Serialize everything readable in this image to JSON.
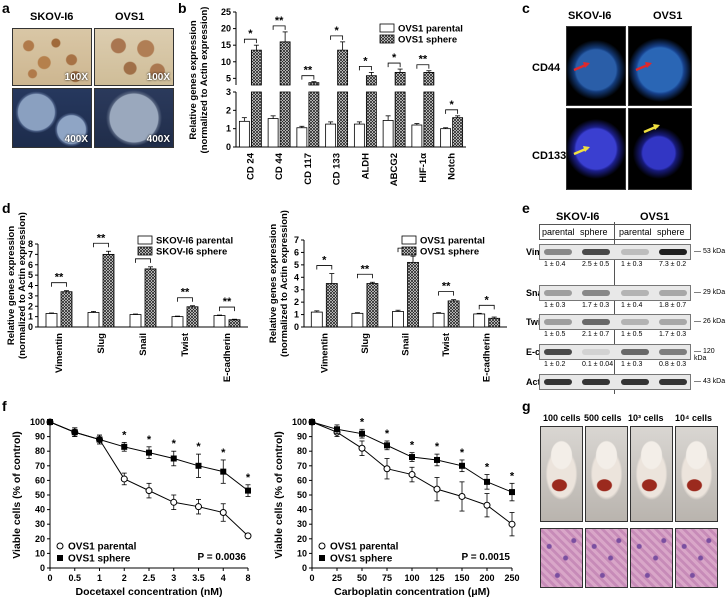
{
  "panel_letters": [
    "a",
    "b",
    "c",
    "d",
    "e",
    "f",
    "g"
  ],
  "panel_a": {
    "col_labels": [
      "SKOV-I6",
      "OVS1"
    ],
    "magnifications": [
      "100X",
      "100X",
      "400X",
      "400X"
    ]
  },
  "panel_c": {
    "col_labels": [
      "SKOV-I6",
      "OVS1"
    ],
    "row_labels": [
      "CD44",
      "CD133"
    ]
  },
  "panel_e": {
    "col_labels": [
      "SKOV-I6",
      "OVS1"
    ],
    "sub_labels": [
      "parental",
      "sphere",
      "parental",
      "sphere"
    ],
    "rows": [
      {
        "protein": "Vimentin",
        "kda": "53 kDa",
        "quant": [
          "1 ± 0.4",
          "2.5 ± 0.5",
          "1 ± 0.3",
          "7.3 ± 0.2"
        ]
      },
      {
        "protein": "Snail",
        "kda": "29 kDa",
        "quant": [
          "1 ± 0.3",
          "1.7 ± 0.3",
          "1 ± 0.4",
          "1.8 ± 0.7"
        ]
      },
      {
        "protein": "Twist",
        "kda": "26 kDa",
        "quant": [
          "1 ± 0.5",
          "2.1 ± 0.7",
          "1 ± 0.5",
          "1.7 ± 0.3"
        ]
      },
      {
        "protein": "E-cadherin",
        "kda": "120 kDa",
        "quant": [
          "1 ± 0.2",
          "0.1 ± 0.04",
          "1 ± 0.3",
          "0.8 ± 0.3"
        ]
      },
      {
        "protein": "Actin",
        "kda": "43 kDa",
        "quant": []
      }
    ]
  },
  "panel_g": {
    "cell_counts": [
      "100 cells",
      "500 cells",
      "10³ cells",
      "10⁴ cells"
    ]
  },
  "chart_data": [
    {
      "id": "b",
      "type": "bar",
      "broken_axis": true,
      "ylabel": "Relative genes expression\n(normalized to Actin expression)",
      "categories": [
        "CD 24",
        "CD 44",
        "CD 117",
        "CD 133",
        "ALDH",
        "ABCG2",
        "HIF-1α",
        "Notch"
      ],
      "series": [
        {
          "name": "OVS1 parental",
          "values": [
            1.4,
            1.55,
            1.05,
            1.25,
            1.25,
            1.45,
            1.2,
            1.0
          ],
          "errors": [
            0.2,
            0.15,
            0.08,
            0.12,
            0.12,
            0.25,
            0.08,
            0.05
          ]
        },
        {
          "name": "OVS1 sphere",
          "values": [
            13.5,
            16.0,
            3.7,
            13.5,
            5.8,
            6.8,
            6.8,
            1.6
          ],
          "errors": [
            1.5,
            3.0,
            0.3,
            2.5,
            1.0,
            1.0,
            0.5,
            0.1
          ]
        }
      ],
      "lower_ticks": [
        "0",
        "1",
        "2",
        "3"
      ],
      "upper_ticks": [
        "5",
        "10",
        "15",
        "20",
        "25"
      ],
      "significance": [
        "*",
        "**",
        "**",
        "*",
        "*",
        "*",
        "**",
        "*"
      ]
    },
    {
      "id": "d1",
      "type": "bar",
      "ylabel": "Relative genes expression\n(normalized to Actin expression)",
      "categories": [
        "Vimentin",
        "Slug",
        "Snail",
        "Twist",
        "E-cadherin"
      ],
      "series": [
        {
          "name": "SKOV-I6 parental",
          "values": [
            1.3,
            1.4,
            1.2,
            1.0,
            1.1
          ],
          "errors": [
            0.05,
            0.1,
            0.05,
            0.05,
            0.05
          ]
        },
        {
          "name": "SKOV-I6 sphere",
          "values": [
            3.4,
            7.0,
            5.6,
            1.95,
            0.7
          ],
          "errors": [
            0.1,
            0.3,
            0.2,
            0.1,
            0.05
          ]
        }
      ],
      "ylim": [
        0,
        8
      ],
      "ticks": [
        "0",
        "1",
        "2",
        "3",
        "4",
        "5",
        "6",
        "7",
        "8"
      ],
      "significance": [
        "**",
        "**",
        "**",
        "**",
        "**"
      ]
    },
    {
      "id": "d2",
      "type": "bar",
      "ylabel": "Relative genes expression\n(normalized to Actin expression)",
      "categories": [
        "Vimentin",
        "Slug",
        "Snail",
        "Twist",
        "E-cadherin"
      ],
      "series": [
        {
          "name": "OVS1 parental",
          "values": [
            1.2,
            1.1,
            1.25,
            1.1,
            1.05
          ],
          "errors": [
            0.1,
            0.05,
            0.1,
            0.05,
            0.05
          ]
        },
        {
          "name": "OVS1 sphere",
          "values": [
            3.5,
            3.5,
            5.2,
            2.1,
            0.7
          ],
          "errors": [
            0.8,
            0.1,
            0.5,
            0.1,
            0.1
          ]
        }
      ],
      "ylim": [
        0,
        7
      ],
      "ticks": [
        "0",
        "1",
        "2",
        "3",
        "4",
        "5",
        "6",
        "7"
      ],
      "significance": [
        "*",
        "**",
        "*",
        "**",
        "*"
      ]
    },
    {
      "id": "f1",
      "type": "line",
      "xlabel": "Docetaxel concentration (nM)",
      "ylabel": "Viable cells (% of control)",
      "x": [
        "0",
        "0.5",
        "1",
        "2",
        "2.5",
        "3",
        "3.5",
        "4",
        "8"
      ],
      "series": [
        {
          "name": "OVS1 parental",
          "marker": "open",
          "values": [
            100,
            93,
            88,
            61,
            53,
            45,
            42,
            38,
            22
          ],
          "errors": [
            1,
            3,
            3,
            4,
            5,
            5,
            5,
            6,
            1
          ]
        },
        {
          "name": "OVS1 sphere",
          "marker": "filled",
          "values": [
            100,
            93,
            88,
            83,
            79,
            75,
            70,
            66,
            53
          ],
          "errors": [
            1,
            3,
            3,
            3,
            4,
            5,
            8,
            8,
            4
          ]
        }
      ],
      "ylim": [
        0,
        100
      ],
      "ticks": [
        "0",
        "10",
        "20",
        "30",
        "40",
        "50",
        "60",
        "70",
        "80",
        "90",
        "100"
      ],
      "significance": [
        "",
        "",
        "",
        "*",
        "*",
        "*",
        "*",
        "*",
        "*"
      ],
      "pvalue": "P = 0.0036"
    },
    {
      "id": "f2",
      "type": "line",
      "xlabel": "Carboplatin concentration (μM)",
      "ylabel": "Viable cells (% of control)",
      "x": [
        "0",
        "25",
        "50",
        "75",
        "100",
        "125",
        "150",
        "200",
        "250"
      ],
      "series": [
        {
          "name": "OVS1 parental",
          "marker": "open",
          "values": [
            100,
            93,
            82,
            68,
            64,
            54,
            49,
            43,
            30
          ],
          "errors": [
            1,
            3,
            5,
            7,
            5,
            8,
            10,
            8,
            8
          ]
        },
        {
          "name": "OVS1 sphere",
          "marker": "filled",
          "values": [
            100,
            95,
            92,
            84,
            76,
            74,
            70,
            59,
            52
          ],
          "errors": [
            1,
            3,
            3,
            3,
            3,
            4,
            4,
            5,
            6
          ]
        }
      ],
      "ylim": [
        0,
        100
      ],
      "ticks": [
        "0",
        "10",
        "20",
        "30",
        "40",
        "50",
        "60",
        "70",
        "80",
        "90",
        "100"
      ],
      "significance": [
        "",
        "",
        "*",
        "*",
        "*",
        "*",
        "*",
        "*",
        "*"
      ],
      "pvalue": "P = 0.0015"
    }
  ]
}
